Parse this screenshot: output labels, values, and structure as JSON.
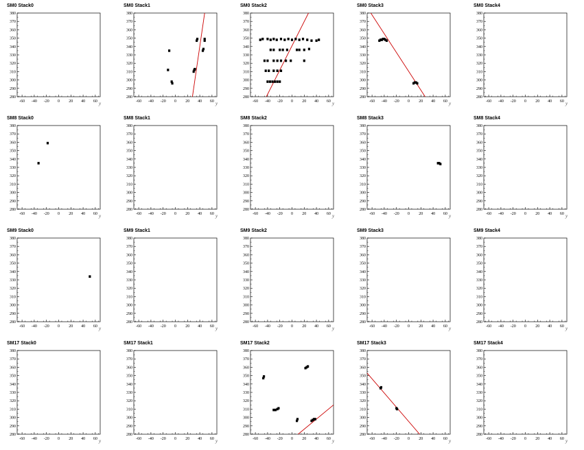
{
  "figure": {
    "background": "#ffffff",
    "hit_color": "#000000",
    "line_color": "#cc0000"
  },
  "chart_data": [
    {
      "type": "scatter",
      "title": "SM0 Stack0",
      "xlabel": "y",
      "xlim": [
        -68,
        68
      ],
      "ylim": [
        280,
        380
      ],
      "x_ticks": [
        -60,
        -40,
        -20,
        0,
        20,
        40,
        60
      ],
      "y_ticks": [
        280,
        290,
        300,
        310,
        320,
        330,
        340,
        350,
        360,
        370,
        380
      ],
      "points": [],
      "lines": []
    },
    {
      "type": "scatter",
      "title": "SM0 Stack1",
      "xlabel": "y",
      "xlim": [
        -68,
        68
      ],
      "ylim": [
        280,
        380
      ],
      "x_ticks": [
        -60,
        -40,
        -20,
        0,
        20,
        40,
        60
      ],
      "y_ticks": [
        280,
        290,
        300,
        310,
        320,
        330,
        340,
        350,
        360,
        370,
        380
      ],
      "points": [
        [
          -10,
          335
        ],
        [
          -12,
          312
        ],
        [
          -6,
          298
        ],
        [
          -5,
          296
        ],
        [
          30,
          310
        ],
        [
          31,
          312
        ],
        [
          32,
          313
        ],
        [
          35,
          347
        ],
        [
          36,
          349
        ],
        [
          45,
          335
        ],
        [
          46,
          337
        ],
        [
          48,
          347
        ],
        [
          48,
          349
        ]
      ],
      "lines": [
        [
          [
            28,
            280
          ],
          [
            48,
            380
          ]
        ]
      ]
    },
    {
      "type": "scatter",
      "title": "SM0 Stack2",
      "xlabel": "y",
      "xlim": [
        -68,
        68
      ],
      "ylim": [
        280,
        380
      ],
      "x_ticks": [
        -60,
        -40,
        -20,
        0,
        20,
        40,
        60
      ],
      "y_ticks": [
        280,
        290,
        300,
        310,
        320,
        330,
        340,
        350,
        360,
        370,
        380
      ],
      "points": [
        [
          -52,
          348
        ],
        [
          -48,
          349
        ],
        [
          -40,
          349
        ],
        [
          -35,
          348
        ],
        [
          -30,
          349
        ],
        [
          -25,
          348
        ],
        [
          -18,
          349
        ],
        [
          -12,
          348
        ],
        [
          -6,
          349
        ],
        [
          0,
          348
        ],
        [
          6,
          349
        ],
        [
          12,
          348
        ],
        [
          18,
          349
        ],
        [
          25,
          348
        ],
        [
          32,
          347
        ],
        [
          40,
          347
        ],
        [
          44,
          348
        ],
        [
          -35,
          336
        ],
        [
          -30,
          336
        ],
        [
          -20,
          336
        ],
        [
          -15,
          336
        ],
        [
          -8,
          336
        ],
        [
          8,
          336
        ],
        [
          12,
          336
        ],
        [
          20,
          336
        ],
        [
          28,
          337
        ],
        [
          -45,
          323
        ],
        [
          -40,
          323
        ],
        [
          -30,
          323
        ],
        [
          -24,
          323
        ],
        [
          -18,
          323
        ],
        [
          -10,
          323
        ],
        [
          -2,
          323
        ],
        [
          20,
          323
        ],
        [
          -43,
          311
        ],
        [
          -38,
          311
        ],
        [
          -30,
          311
        ],
        [
          -24,
          311
        ],
        [
          -18,
          311
        ],
        [
          -40,
          298
        ],
        [
          -36,
          298
        ],
        [
          -32,
          298
        ],
        [
          -28,
          298
        ],
        [
          -24,
          298
        ],
        [
          -20,
          298
        ]
      ],
      "lines": [
        [
          [
            -42,
            280
          ],
          [
            27,
            380
          ]
        ]
      ]
    },
    {
      "type": "scatter",
      "title": "SM0 Stack3",
      "xlabel": "y",
      "xlim": [
        -68,
        68
      ],
      "ylim": [
        280,
        380
      ],
      "x_ticks": [
        -60,
        -40,
        -20,
        0,
        20,
        40,
        60
      ],
      "y_ticks": [
        280,
        290,
        300,
        310,
        320,
        330,
        340,
        350,
        360,
        370,
        380
      ],
      "points": [
        [
          -48,
          347
        ],
        [
          -46,
          348
        ],
        [
          -44,
          348
        ],
        [
          -42,
          349
        ],
        [
          -40,
          349
        ],
        [
          -38,
          348
        ],
        [
          -36,
          347
        ],
        [
          8,
          296
        ],
        [
          10,
          297
        ],
        [
          12,
          297
        ],
        [
          14,
          296
        ]
      ],
      "lines": [
        [
          [
            -62,
            380
          ],
          [
            27,
            280
          ]
        ]
      ]
    },
    {
      "type": "scatter",
      "title": "SM0 Stack4",
      "xlabel": "y",
      "xlim": [
        -68,
        68
      ],
      "ylim": [
        280,
        380
      ],
      "x_ticks": [
        -60,
        -40,
        -20,
        0,
        20,
        40,
        60
      ],
      "y_ticks": [
        280,
        290,
        300,
        310,
        320,
        330,
        340,
        350,
        360,
        370,
        380
      ],
      "points": [],
      "lines": []
    },
    {
      "type": "scatter",
      "title": "SM8 Stack0",
      "xlabel": "y",
      "xlim": [
        -68,
        68
      ],
      "ylim": [
        280,
        380
      ],
      "x_ticks": [
        -60,
        -40,
        -20,
        0,
        20,
        40,
        60
      ],
      "y_ticks": [
        280,
        290,
        300,
        310,
        320,
        330,
        340,
        350,
        360,
        370,
        380
      ],
      "points": [
        [
          -33,
          335
        ],
        [
          -18,
          359
        ]
      ],
      "lines": []
    },
    {
      "type": "scatter",
      "title": "SM8 Stack1",
      "xlabel": "y",
      "xlim": [
        -68,
        68
      ],
      "ylim": [
        280,
        380
      ],
      "x_ticks": [
        -60,
        -40,
        -20,
        0,
        20,
        40,
        60
      ],
      "y_ticks": [
        280,
        290,
        300,
        310,
        320,
        330,
        340,
        350,
        360,
        370,
        380
      ],
      "points": [],
      "lines": []
    },
    {
      "type": "scatter",
      "title": "SM8 Stack2",
      "xlabel": "y",
      "xlim": [
        -68,
        68
      ],
      "ylim": [
        280,
        380
      ],
      "x_ticks": [
        -60,
        -40,
        -20,
        0,
        20,
        40,
        60
      ],
      "y_ticks": [
        280,
        290,
        300,
        310,
        320,
        330,
        340,
        350,
        360,
        370,
        380
      ],
      "points": [],
      "lines": []
    },
    {
      "type": "scatter",
      "title": "SM8 Stack3",
      "xlabel": "y",
      "xlim": [
        -68,
        68
      ],
      "ylim": [
        280,
        380
      ],
      "x_ticks": [
        -60,
        -40,
        -20,
        0,
        20,
        40,
        60
      ],
      "y_ticks": [
        280,
        290,
        300,
        310,
        320,
        330,
        340,
        350,
        360,
        370,
        380
      ],
      "points": [
        [
          48,
          335
        ],
        [
          50,
          335
        ],
        [
          52,
          334
        ]
      ],
      "lines": []
    },
    {
      "type": "scatter",
      "title": "SM8 Stack4",
      "xlabel": "y",
      "xlim": [
        -68,
        68
      ],
      "ylim": [
        280,
        380
      ],
      "x_ticks": [
        -60,
        -40,
        -20,
        0,
        20,
        40,
        60
      ],
      "y_ticks": [
        280,
        290,
        300,
        310,
        320,
        330,
        340,
        350,
        360,
        370,
        380
      ],
      "points": [],
      "lines": []
    },
    {
      "type": "scatter",
      "title": "SM9 Stack0",
      "xlabel": "y",
      "xlim": [
        -68,
        68
      ],
      "ylim": [
        280,
        380
      ],
      "x_ticks": [
        -60,
        -40,
        -20,
        0,
        20,
        40,
        60
      ],
      "y_ticks": [
        280,
        290,
        300,
        310,
        320,
        330,
        340,
        350,
        360,
        370,
        380
      ],
      "points": [
        [
          51,
          334
        ]
      ],
      "lines": []
    },
    {
      "type": "scatter",
      "title": "SM9 Stack1",
      "xlabel": "y",
      "xlim": [
        -68,
        68
      ],
      "ylim": [
        280,
        380
      ],
      "x_ticks": [
        -60,
        -40,
        -20,
        0,
        20,
        40,
        60
      ],
      "y_ticks": [
        280,
        290,
        300,
        310,
        320,
        330,
        340,
        350,
        360,
        370,
        380
      ],
      "points": [],
      "lines": []
    },
    {
      "type": "scatter",
      "title": "SM9 Stack2",
      "xlabel": "y",
      "xlim": [
        -68,
        68
      ],
      "ylim": [
        280,
        380
      ],
      "x_ticks": [
        -60,
        -40,
        -20,
        0,
        20,
        40,
        60
      ],
      "y_ticks": [
        280,
        290,
        300,
        310,
        320,
        330,
        340,
        350,
        360,
        370,
        380
      ],
      "points": [],
      "lines": []
    },
    {
      "type": "scatter",
      "title": "SM9 Stack3",
      "xlabel": "y",
      "xlim": [
        -68,
        68
      ],
      "ylim": [
        280,
        380
      ],
      "x_ticks": [
        -60,
        -40,
        -20,
        0,
        20,
        40,
        60
      ],
      "y_ticks": [
        280,
        290,
        300,
        310,
        320,
        330,
        340,
        350,
        360,
        370,
        380
      ],
      "points": [],
      "lines": []
    },
    {
      "type": "scatter",
      "title": "SM9 Stack4",
      "xlabel": "y",
      "xlim": [
        -68,
        68
      ],
      "ylim": [
        280,
        380
      ],
      "x_ticks": [
        -60,
        -40,
        -20,
        0,
        20,
        40,
        60
      ],
      "y_ticks": [
        280,
        290,
        300,
        310,
        320,
        330,
        340,
        350,
        360,
        370,
        380
      ],
      "points": [],
      "lines": []
    },
    {
      "type": "scatter",
      "title": "SM17 Stack0",
      "xlabel": "y",
      "xlim": [
        -68,
        68
      ],
      "ylim": [
        280,
        380
      ],
      "x_ticks": [
        -60,
        -40,
        -20,
        0,
        20,
        40,
        60
      ],
      "y_ticks": [
        280,
        290,
        300,
        310,
        320,
        330,
        340,
        350,
        360,
        370,
        380
      ],
      "points": [],
      "lines": []
    },
    {
      "type": "scatter",
      "title": "SM17 Stack1",
      "xlabel": "y",
      "xlim": [
        -68,
        68
      ],
      "ylim": [
        280,
        380
      ],
      "x_ticks": [
        -60,
        -40,
        -20,
        0,
        20,
        40,
        60
      ],
      "y_ticks": [
        280,
        290,
        300,
        310,
        320,
        330,
        340,
        350,
        360,
        370,
        380
      ],
      "points": [],
      "lines": []
    },
    {
      "type": "scatter",
      "title": "SM17 Stack2",
      "xlabel": "y",
      "xlim": [
        -68,
        68
      ],
      "ylim": [
        280,
        380
      ],
      "x_ticks": [
        -60,
        -40,
        -20,
        0,
        20,
        40,
        60
      ],
      "y_ticks": [
        280,
        290,
        300,
        310,
        320,
        330,
        340,
        350,
        360,
        370,
        380
      ],
      "points": [
        [
          -47,
          347
        ],
        [
          -46,
          349
        ],
        [
          -30,
          309
        ],
        [
          -27,
          309
        ],
        [
          -24,
          310
        ],
        [
          -22,
          311
        ],
        [
          22,
          359
        ],
        [
          24,
          360
        ],
        [
          26,
          361
        ],
        [
          8,
          296
        ],
        [
          9,
          298
        ],
        [
          32,
          296
        ],
        [
          34,
          297
        ],
        [
          36,
          298
        ],
        [
          38,
          298
        ]
      ],
      "lines": [
        [
          [
            10,
            280
          ],
          [
            68,
            315
          ]
        ]
      ]
    },
    {
      "type": "scatter",
      "title": "SM17 Stack3",
      "xlabel": "y",
      "xlim": [
        -68,
        68
      ],
      "ylim": [
        280,
        380
      ],
      "x_ticks": [
        -60,
        -40,
        -20,
        0,
        20,
        40,
        60
      ],
      "y_ticks": [
        280,
        290,
        300,
        310,
        320,
        330,
        340,
        350,
        360,
        370,
        380
      ],
      "points": [
        [
          -46,
          335
        ],
        [
          -45,
          336
        ],
        [
          -20,
          311
        ],
        [
          -19,
          310
        ]
      ],
      "lines": [
        [
          [
            -68,
            353
          ],
          [
            18,
            280
          ]
        ]
      ]
    },
    {
      "type": "scatter",
      "title": "SM17 Stack4",
      "xlabel": "y",
      "xlim": [
        -68,
        68
      ],
      "ylim": [
        280,
        380
      ],
      "x_ticks": [
        -60,
        -40,
        -20,
        0,
        20,
        40,
        60
      ],
      "y_ticks": [
        280,
        290,
        300,
        310,
        320,
        330,
        340,
        350,
        360,
        370,
        380
      ],
      "points": [],
      "lines": []
    }
  ]
}
